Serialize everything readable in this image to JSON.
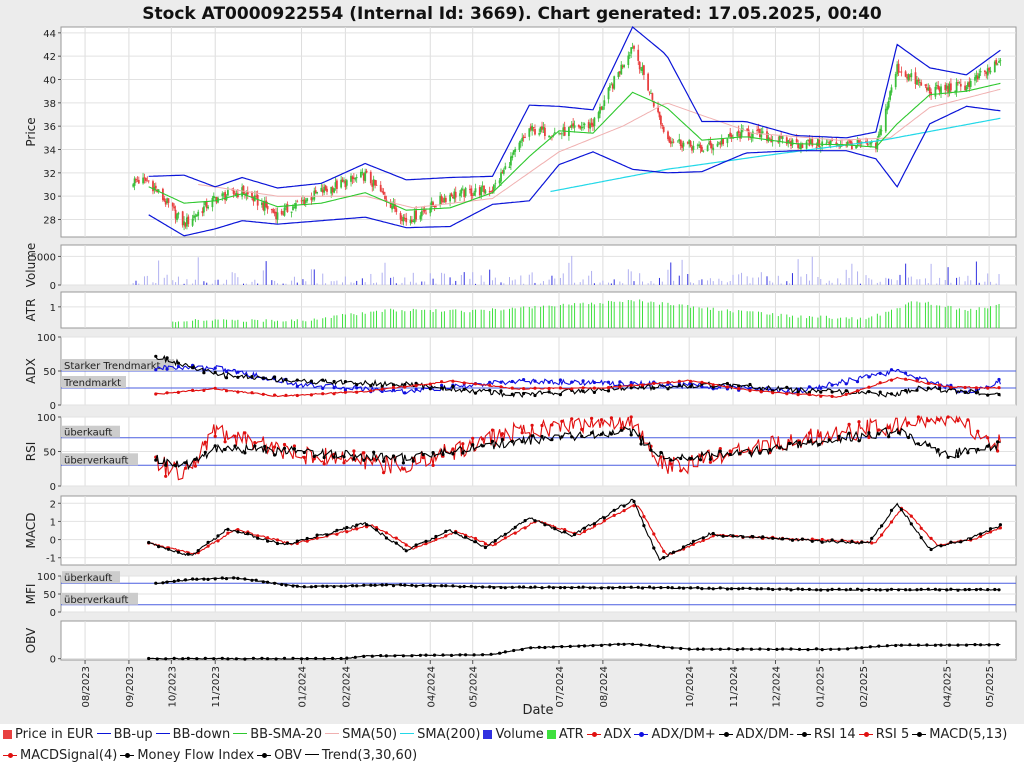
{
  "title": "Stock AT0000922554 (Internal Id: 3669). Chart generated: 17.05.2025, 00:40",
  "colors": {
    "price_up": "#3bbf3b",
    "price_down": "#e84040",
    "bb": "#0a14d8",
    "bb_sma": "#2ec82e",
    "sma50": "#f0b0b0",
    "sma200": "#22d8e8",
    "volume": "#3030e0",
    "atr": "#3ee03e",
    "adx": "#e01010",
    "dmplus": "#1010e0",
    "dmminus": "#000000",
    "rsi14": "#000000",
    "rsi5": "#e01010",
    "macd": "#000000",
    "macd_signal": "#e01010",
    "mfi": "#000000",
    "obv": "#000000",
    "trend": "#000000",
    "guide": "#4a5ee0"
  },
  "chart_data": {
    "type": "line",
    "x_tick_labels": [
      "08/2023",
      "09/2023",
      "10/2023",
      "11/2023",
      "01/2024",
      "02/2024",
      "04/2024",
      "05/2024",
      "07/2024",
      "08/2024",
      "10/2024",
      "11/2024",
      "12/2024",
      "01/2025",
      "02/2025",
      "04/2025",
      "05/2025"
    ],
    "x_label": "Date",
    "panels": [
      {
        "id": "price",
        "ylabel": "Price",
        "ylim": [
          26.5,
          44.5
        ],
        "ticks": [
          28,
          30,
          32,
          34,
          36,
          38,
          40,
          42,
          44
        ],
        "anchors": [
          {
            "date": "2023-09-15",
            "close": 31.3,
            "bb_up": 31.7,
            "bb_down": 28.4,
            "bb_sma": 30.8
          },
          {
            "date": "2023-10-10",
            "close": 27.6,
            "bb_up": 31.8,
            "bb_down": 26.6,
            "bb_sma": 29.4
          },
          {
            "date": "2023-11-01",
            "close": 29.8,
            "bb_up": 30.8,
            "bb_down": 27.2,
            "bb_sma": 29.6
          },
          {
            "date": "2023-11-20",
            "close": 30.4,
            "bb_up": 31.6,
            "bb_down": 27.9,
            "bb_sma": 30.2
          },
          {
            "date": "2023-12-15",
            "close": 28.4,
            "bb_up": 30.7,
            "bb_down": 27.6,
            "bb_sma": 29.1
          },
          {
            "date": "2024-01-15",
            "close": 30.4,
            "bb_up": 31.1,
            "bb_down": 27.9,
            "bb_sma": 29.4
          },
          {
            "date": "2024-02-15",
            "close": 31.8,
            "bb_up": 32.8,
            "bb_down": 28.2,
            "bb_sma": 30.3
          },
          {
            "date": "2024-03-15",
            "close": 27.9,
            "bb_up": 31.4,
            "bb_down": 27.3,
            "bb_sma": 28.8
          },
          {
            "date": "2024-04-15",
            "close": 30.1,
            "bb_up": 31.6,
            "bb_down": 27.4,
            "bb_sma": 29.0
          },
          {
            "date": "2024-05-15",
            "close": 30.6,
            "bb_up": 31.7,
            "bb_down": 29.3,
            "bb_sma": 30.3
          },
          {
            "date": "2024-06-10",
            "close": 35.7,
            "bb_up": 37.8,
            "bb_down": 29.6,
            "bb_sma": 33.4
          },
          {
            "date": "2024-07-01",
            "close": 35.4,
            "bb_up": 37.7,
            "bb_down": 32.7,
            "bb_sma": 35.6
          },
          {
            "date": "2024-07-25",
            "close": 36.2,
            "bb_up": 37.4,
            "bb_down": 33.8,
            "bb_sma": 35.4
          },
          {
            "date": "2024-08-22",
            "close": 43.0,
            "bb_up": 44.5,
            "bb_down": 32.3,
            "bb_sma": 38.9
          },
          {
            "date": "2024-09-15",
            "close": 35.0,
            "bb_up": 42.1,
            "bb_down": 32.0,
            "bb_sma": 37.6
          },
          {
            "date": "2024-10-10",
            "close": 34.0,
            "bb_up": 36.4,
            "bb_down": 32.1,
            "bb_sma": 34.8
          },
          {
            "date": "2024-11-10",
            "close": 35.5,
            "bb_up": 36.4,
            "bb_down": 33.7,
            "bb_sma": 35.1
          },
          {
            "date": "2024-12-15",
            "close": 34.5,
            "bb_up": 35.2,
            "bb_down": 33.9,
            "bb_sma": 34.5
          },
          {
            "date": "2025-01-20",
            "close": 34.5,
            "bb_up": 35.0,
            "bb_down": 33.9,
            "bb_sma": 34.4
          },
          {
            "date": "2025-02-10",
            "close": 34.2,
            "bb_up": 35.5,
            "bb_down": 33.2,
            "bb_sma": 34.2
          },
          {
            "date": "2025-02-25",
            "close": 41.0,
            "bb_up": 43.0,
            "bb_down": 30.8,
            "bb_sma": 36.2
          },
          {
            "date": "2025-03-20",
            "close": 39.0,
            "bb_up": 41.0,
            "bb_down": 36.2,
            "bb_sma": 38.7
          },
          {
            "date": "2025-04-15",
            "close": 39.5,
            "bb_up": 40.4,
            "bb_down": 37.7,
            "bb_sma": 39.0
          },
          {
            "date": "2025-05-10",
            "close": 41.5,
            "bb_up": 42.6,
            "bb_down": 37.3,
            "bb_sma": 39.7
          }
        ],
        "sma50_anchors": [
          [
            "2023-10-20",
            31.0
          ],
          [
            "2023-12-15",
            30.0
          ],
          [
            "2024-02-15",
            30.0
          ],
          [
            "2024-03-20",
            29.0
          ],
          [
            "2024-05-15",
            29.8
          ],
          [
            "2024-07-01",
            33.8
          ],
          [
            "2024-08-15",
            36.0
          ],
          [
            "2024-09-15",
            38.0
          ],
          [
            "2024-11-15",
            35.4
          ],
          [
            "2025-01-15",
            34.8
          ],
          [
            "2025-02-20",
            35.0
          ],
          [
            "2025-03-20",
            37.6
          ],
          [
            "2025-05-10",
            39.2
          ]
        ],
        "sma200_anchors": [
          [
            "2024-06-25",
            30.4
          ],
          [
            "2024-09-15",
            32.3
          ],
          [
            "2024-12-01",
            33.6
          ],
          [
            "2025-02-15",
            34.8
          ],
          [
            "2025-05-10",
            36.7
          ]
        ]
      },
      {
        "id": "volume",
        "ylabel": "Volume",
        "ylim": [
          0,
          7000
        ],
        "ticks": [
          0,
          5000
        ]
      },
      {
        "id": "atr",
        "ylabel": "ATR",
        "ylim": [
          0,
          1.7
        ],
        "ticks": [
          1
        ]
      },
      {
        "id": "adx",
        "ylabel": "ADX",
        "ylim": [
          0,
          100
        ],
        "ticks": [
          0,
          50,
          100
        ],
        "guides": [
          {
            "value": 50,
            "label": "Starker Trendmarkt"
          },
          {
            "value": 25,
            "label": "Trendmarkt"
          }
        ],
        "adx_anchors": [
          [
            "2023-09-20",
            16
          ],
          [
            "2023-11-01",
            24
          ],
          [
            "2023-12-15",
            13
          ],
          [
            "2024-02-15",
            20
          ],
          [
            "2024-04-15",
            35
          ],
          [
            "2024-06-01",
            24
          ],
          [
            "2024-08-01",
            25
          ],
          [
            "2024-10-01",
            36
          ],
          [
            "2024-11-15",
            21
          ],
          [
            "2025-01-15",
            12
          ],
          [
            "2025-02-25",
            40
          ],
          [
            "2025-04-01",
            27
          ],
          [
            "2025-05-10",
            25
          ]
        ],
        "dmplus_anchors": [
          [
            "2023-09-20",
            55
          ],
          [
            "2023-11-01",
            55
          ],
          [
            "2024-01-01",
            30
          ],
          [
            "2024-03-15",
            20
          ],
          [
            "2024-06-01",
            35
          ],
          [
            "2024-08-15",
            32
          ],
          [
            "2024-10-15",
            28
          ],
          [
            "2024-12-15",
            20
          ],
          [
            "2025-02-25",
            50
          ],
          [
            "2025-04-15",
            18
          ],
          [
            "2025-05-10",
            35
          ]
        ],
        "dmminus_anchors": [
          [
            "2023-09-20",
            72
          ],
          [
            "2023-11-01",
            45
          ],
          [
            "2024-01-01",
            35
          ],
          [
            "2024-03-15",
            30
          ],
          [
            "2024-06-01",
            15
          ],
          [
            "2024-08-15",
            25
          ],
          [
            "2024-10-15",
            30
          ],
          [
            "2024-12-15",
            22
          ],
          [
            "2025-02-20",
            15
          ],
          [
            "2025-03-15",
            25
          ],
          [
            "2025-05-10",
            15
          ]
        ]
      },
      {
        "id": "rsi",
        "ylabel": "RSI",
        "ylim": [
          0,
          100
        ],
        "ticks": [
          0,
          50,
          100
        ],
        "guides": [
          {
            "value": 70,
            "label": "überkauft"
          },
          {
            "value": 30,
            "label": "überverkauft"
          }
        ],
        "rsi14_anchors": [
          [
            "2023-09-20",
            40
          ],
          [
            "2023-10-10",
            28
          ],
          [
            "2023-11-01",
            55
          ],
          [
            "2024-01-01",
            50
          ],
          [
            "2024-03-15",
            40
          ],
          [
            "2024-06-01",
            65
          ],
          [
            "2024-08-20",
            80
          ],
          [
            "2024-09-15",
            40
          ],
          [
            "2024-11-15",
            50
          ],
          [
            "2025-02-25",
            80
          ],
          [
            "2025-04-01",
            45
          ],
          [
            "2025-05-10",
            60
          ]
        ],
        "rsi5_anchors": [
          [
            "2023-09-20",
            35
          ],
          [
            "2023-10-10",
            15
          ],
          [
            "2023-11-01",
            80
          ],
          [
            "2024-01-01",
            45
          ],
          [
            "2024-03-15",
            30
          ],
          [
            "2024-06-01",
            80
          ],
          [
            "2024-08-20",
            95
          ],
          [
            "2024-09-15",
            25
          ],
          [
            "2024-11-15",
            55
          ],
          [
            "2025-02-25",
            90
          ],
          [
            "2025-04-01",
            100
          ],
          [
            "2025-05-10",
            60
          ]
        ]
      },
      {
        "id": "macd",
        "ylabel": "MACD",
        "ylim": [
          -1.4,
          2.4
        ],
        "ticks": [
          -1,
          0,
          1,
          2
        ],
        "macd_anchors": [
          [
            "2023-09-15",
            -0.2
          ],
          [
            "2023-10-15",
            -0.9
          ],
          [
            "2023-11-10",
            0.6
          ],
          [
            "2023-12-20",
            -0.3
          ],
          [
            "2024-02-15",
            0.9
          ],
          [
            "2024-03-15",
            -0.6
          ],
          [
            "2024-04-15",
            0.5
          ],
          [
            "2024-05-10",
            -0.4
          ],
          [
            "2024-06-10",
            1.2
          ],
          [
            "2024-07-10",
            0.2
          ],
          [
            "2024-08-22",
            2.2
          ],
          [
            "2024-09-10",
            -1.1
          ],
          [
            "2024-10-15",
            0.3
          ],
          [
            "2024-12-15",
            0.0
          ],
          [
            "2025-02-05",
            -0.2
          ],
          [
            "2025-02-25",
            2.0
          ],
          [
            "2025-03-20",
            -0.5
          ],
          [
            "2025-04-15",
            0.0
          ],
          [
            "2025-05-10",
            0.8
          ]
        ],
        "signal_anchors": [
          [
            "2023-09-15",
            -0.2
          ],
          [
            "2023-10-18",
            -0.8
          ],
          [
            "2023-11-15",
            0.55
          ],
          [
            "2023-12-25",
            -0.25
          ],
          [
            "2024-02-20",
            0.8
          ],
          [
            "2024-03-20",
            -0.5
          ],
          [
            "2024-04-20",
            0.45
          ],
          [
            "2024-05-15",
            -0.35
          ],
          [
            "2024-06-15",
            1.05
          ],
          [
            "2024-07-15",
            0.25
          ],
          [
            "2024-08-25",
            2.0
          ],
          [
            "2024-09-15",
            -0.9
          ],
          [
            "2024-10-20",
            0.25
          ],
          [
            "2024-12-20",
            0.0
          ],
          [
            "2025-02-10",
            -0.15
          ],
          [
            "2025-03-01",
            1.8
          ],
          [
            "2025-03-25",
            -0.3
          ],
          [
            "2025-04-20",
            0.0
          ],
          [
            "2025-05-10",
            0.7
          ]
        ]
      },
      {
        "id": "mfi",
        "ylabel": "MFI",
        "ylim": [
          0,
          100
        ],
        "ticks": [
          0,
          50,
          100
        ],
        "guides": [
          {
            "value": 80,
            "label": "überkauft"
          },
          {
            "value": 20,
            "label": "überverkauft"
          }
        ],
        "mfi_anchors": [
          [
            "2023-09-20",
            80
          ],
          [
            "2023-10-15",
            90
          ],
          [
            "2023-11-15",
            95
          ],
          [
            "2024-01-01",
            70
          ],
          [
            "2024-03-01",
            75
          ],
          [
            "2024-06-01",
            68
          ],
          [
            "2024-09-01",
            68
          ],
          [
            "2025-01-01",
            62
          ],
          [
            "2025-05-10",
            62
          ]
        ]
      },
      {
        "id": "obv",
        "ylabel": "OBV",
        "ylim": [
          -5,
          140
        ],
        "ticks": [
          0
        ],
        "obv_anchors": [
          [
            "2023-09-15",
            0
          ],
          [
            "2024-02-01",
            0
          ],
          [
            "2024-02-15",
            10
          ],
          [
            "2024-05-15",
            15
          ],
          [
            "2024-06-10",
            40
          ],
          [
            "2024-08-20",
            55
          ],
          [
            "2024-10-01",
            35
          ],
          [
            "2025-01-15",
            35
          ],
          [
            "2025-02-25",
            50
          ],
          [
            "2025-05-10",
            52
          ]
        ]
      }
    ],
    "legend": [
      "Price in EUR",
      "BB-up",
      "BB-down",
      "BB-SMA-20",
      "SMA(50)",
      "SMA(200)",
      "Volume",
      "ATR",
      "ADX",
      "ADX/DM+",
      "ADX/DM-",
      "RSI 14",
      "RSI 5",
      "MACD(5,13)",
      "MACDSignal(4)",
      "Money Flow Index",
      "OBV",
      "Trend(3,30,60)"
    ],
    "legend_placement": "bottom"
  }
}
